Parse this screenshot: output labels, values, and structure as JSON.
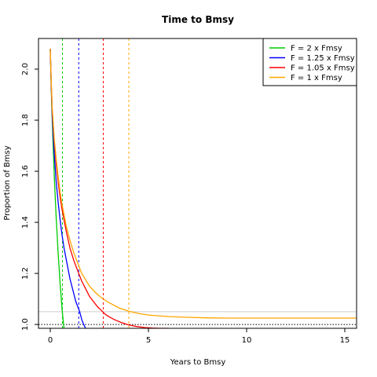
{
  "chart_data": {
    "type": "line",
    "title": "Time to Bmsy",
    "xlabel": "Years to Bmsy",
    "ylabel": "Proportion of Bmsy",
    "xlim": [
      -0.6,
      15.6
    ],
    "ylim": [
      0.985,
      2.12
    ],
    "x_ticks": [
      0,
      5,
      10,
      15
    ],
    "y_ticks": [
      1.0,
      1.2,
      1.4,
      1.6,
      1.8,
      2.0
    ],
    "y_tick_labels": [
      "1.0",
      "1.2",
      "1.4",
      "1.6",
      "1.8",
      "2.0"
    ],
    "grid": false,
    "legend_position": "top-right",
    "reference_lines": [
      {
        "orientation": "horizontal",
        "y": 1.0,
        "style": "dotted",
        "color": "#000000"
      },
      {
        "orientation": "horizontal",
        "y": 1.05,
        "style": "solid",
        "color": "#cccccc"
      }
    ],
    "series": [
      {
        "name": "F = 2 x Fmsy",
        "color": "#00cc00",
        "x": [
          0,
          0.05,
          0.1,
          0.15,
          0.2,
          0.25,
          0.3,
          0.35,
          0.4,
          0.45,
          0.5,
          0.55,
          0.6,
          0.65,
          0.7
        ],
        "y": [
          2.08,
          1.92,
          1.8,
          1.69,
          1.59,
          1.5,
          1.42,
          1.35,
          1.28,
          1.22,
          1.16,
          1.11,
          1.06,
          1.02,
          0.985
        ],
        "vline": 0.62
      },
      {
        "name": "F = 1.25 x Fmsy",
        "color": "#0000ff",
        "x": [
          0,
          0.05,
          0.1,
          0.15,
          0.2,
          0.3,
          0.4,
          0.5,
          0.6,
          0.7,
          0.8,
          0.9,
          1.0,
          1.1,
          1.2,
          1.3,
          1.4,
          1.5,
          1.6,
          1.7,
          1.8
        ],
        "y": [
          2.08,
          1.93,
          1.82,
          1.74,
          1.67,
          1.56,
          1.48,
          1.41,
          1.35,
          1.3,
          1.26,
          1.22,
          1.18,
          1.15,
          1.12,
          1.09,
          1.07,
          1.05,
          1.02,
          1.0,
          0.985
        ],
        "vline": 1.45
      },
      {
        "name": "F = 1.05 x Fmsy",
        "color": "#ff0000",
        "x": [
          0,
          0.05,
          0.1,
          0.2,
          0.3,
          0.4,
          0.5,
          0.6,
          0.8,
          1.0,
          1.2,
          1.4,
          1.6,
          1.8,
          2.0,
          2.2,
          2.4,
          2.6,
          2.8,
          3.0,
          3.3,
          3.6,
          4.0,
          4.4,
          4.8,
          5.2,
          5.6,
          6.0
        ],
        "y": [
          2.08,
          1.94,
          1.84,
          1.72,
          1.63,
          1.56,
          1.5,
          1.45,
          1.37,
          1.3,
          1.25,
          1.21,
          1.17,
          1.14,
          1.11,
          1.09,
          1.07,
          1.055,
          1.04,
          1.03,
          1.018,
          1.008,
          0.998,
          0.992,
          0.988,
          0.986,
          0.985,
          0.985
        ],
        "vline": 2.7
      },
      {
        "name": "F = 1 x Fmsy",
        "color": "#ffa500",
        "x": [
          0,
          0.05,
          0.1,
          0.2,
          0.3,
          0.4,
          0.5,
          0.6,
          0.8,
          1.0,
          1.2,
          1.4,
          1.6,
          1.8,
          2.0,
          2.3,
          2.6,
          3.0,
          3.5,
          4.0,
          4.5,
          5.0,
          6.0,
          7.0,
          8.0,
          9.0,
          10.0,
          11.0,
          12.0,
          13.0,
          14.0,
          15.0,
          15.6
        ],
        "y": [
          2.08,
          1.95,
          1.85,
          1.73,
          1.65,
          1.58,
          1.52,
          1.47,
          1.39,
          1.33,
          1.28,
          1.24,
          1.2,
          1.175,
          1.15,
          1.125,
          1.105,
          1.085,
          1.065,
          1.052,
          1.043,
          1.037,
          1.031,
          1.028,
          1.026,
          1.025,
          1.025,
          1.025,
          1.025,
          1.025,
          1.025,
          1.025,
          1.025
        ],
        "vline": 4.0
      }
    ]
  }
}
